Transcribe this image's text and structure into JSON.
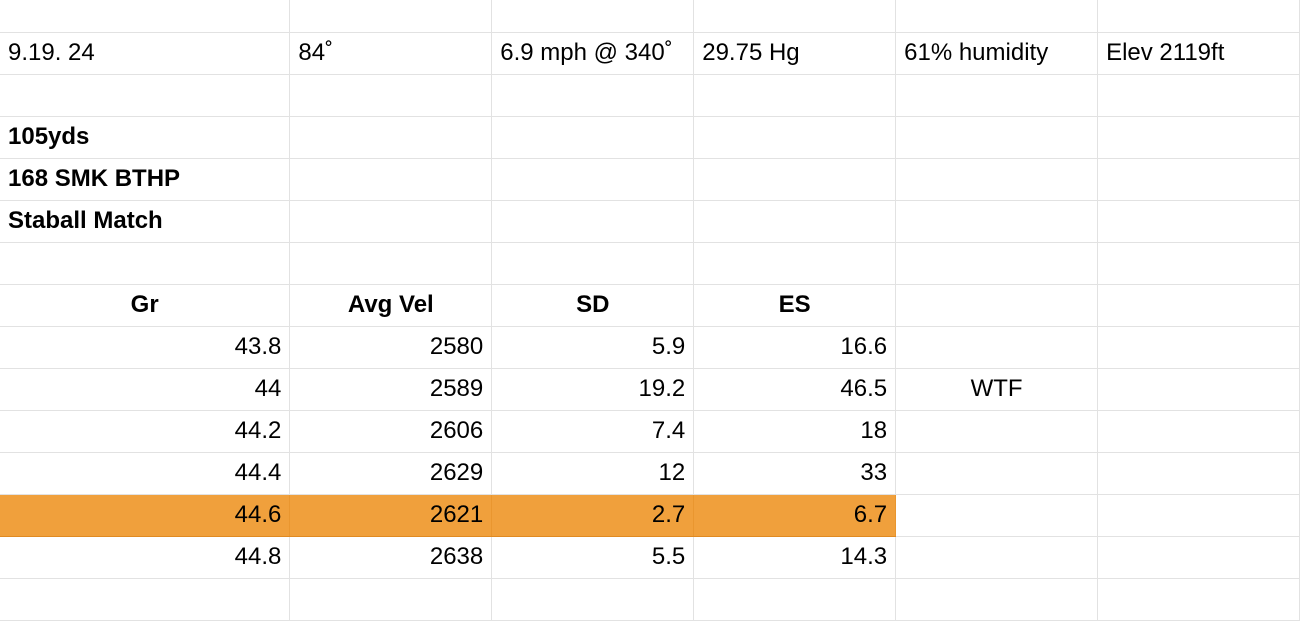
{
  "conditions": {
    "date": "9.19. 24",
    "temperature": "84˚",
    "wind": "6.9 mph @ 340˚",
    "pressure": "29.75 Hg",
    "humidity": "61% humidity",
    "elevation": "Elev 2119ft"
  },
  "load_info": {
    "distance": "105yds",
    "bullet": "168 SMK BTHP",
    "powder": "Staball Match"
  },
  "table": {
    "headers": [
      "Gr",
      "Avg Vel",
      "SD",
      "ES"
    ],
    "rows": [
      {
        "gr": "43.8",
        "avg_vel": "2580",
        "sd": "5.9",
        "es": "16.6",
        "note": ""
      },
      {
        "gr": "44",
        "avg_vel": "2589",
        "sd": "19.2",
        "es": "46.5",
        "note": "WTF"
      },
      {
        "gr": "44.2",
        "avg_vel": "2606",
        "sd": "7.4",
        "es": "18",
        "note": ""
      },
      {
        "gr": "44.4",
        "avg_vel": "2629",
        "sd": "12",
        "es": "33",
        "note": ""
      },
      {
        "gr": "44.6",
        "avg_vel": "2621",
        "sd": "2.7",
        "es": "6.7",
        "note": ""
      },
      {
        "gr": "44.8",
        "avg_vel": "2638",
        "sd": "5.5",
        "es": "14.3",
        "note": ""
      }
    ]
  },
  "highlight_color": "#f0a03c"
}
